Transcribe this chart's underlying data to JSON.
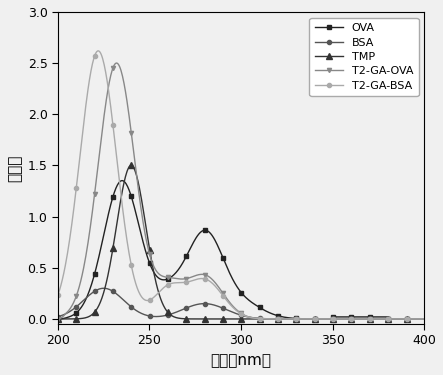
{
  "title": "",
  "xlabel": "波长（nm）",
  "ylabel": "吸光值",
  "xlim": [
    200,
    400
  ],
  "ylim": [
    -0.05,
    3.0
  ],
  "xticks": [
    200,
    250,
    300,
    350,
    400
  ],
  "yticks": [
    0.0,
    0.5,
    1.0,
    1.5,
    2.0,
    2.5,
    3.0
  ],
  "legend_labels": [
    "OVA",
    "BSA",
    "TMP",
    "T2-GA-OVA",
    "T2-GA-BSA"
  ],
  "series_colors": [
    "#222222",
    "#555555",
    "#333333",
    "#888888",
    "#aaaaaa"
  ],
  "series_markers": [
    "s",
    "o",
    "^",
    "v",
    "o"
  ],
  "series_markersizes": [
    3,
    3,
    4,
    3,
    3
  ],
  "background_color": "#f0f0f0"
}
